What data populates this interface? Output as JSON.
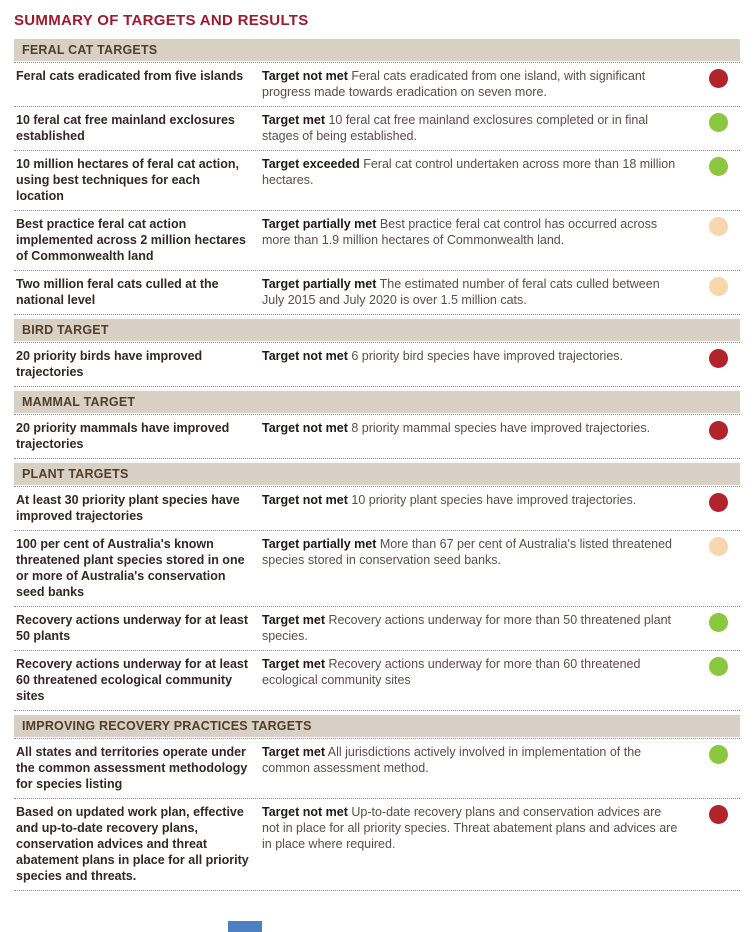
{
  "title": "SUMMARY OF TARGETS AND RESULTS",
  "colors": {
    "met": "#8dc63f",
    "exceeded": "#8dc63f",
    "partially_met": "#f6d7ae",
    "not_met": "#b2232b"
  },
  "sections": [
    {
      "header": "FERAL CAT TARGETS",
      "rows": [
        {
          "target": "Feral cats eradicated from five islands",
          "status_label": "Target not met",
          "result": "Feral cats eradicated from one island, with significant progress made towards eradication on seven more.",
          "status": "not_met"
        },
        {
          "target": "10 feral cat free mainland exclosures established",
          "status_label": "Target met",
          "result": "10 feral cat free mainland exclosures completed or in final stages of being established.",
          "status": "met"
        },
        {
          "target": "10 million hectares of feral cat action, using best techniques for each location",
          "status_label": "Target exceeded",
          "result": "Feral cat control undertaken across more than 18 million hectares.",
          "status": "exceeded"
        },
        {
          "target": "Best practice feral cat action implemented across 2 million hectares of Commonwealth land",
          "status_label": "Target partially met",
          "result": "Best practice feral cat control has occurred across more than 1.9 million hectares of Commonwealth land.",
          "status": "partially_met"
        },
        {
          "target": "Two million feral cats culled at the national level",
          "status_label": "Target partially met",
          "result": "The estimated number of feral cats culled between July 2015 and July 2020 is over 1.5 million cats.",
          "status": "partially_met"
        }
      ]
    },
    {
      "header": "BIRD TARGET",
      "rows": [
        {
          "target": "20 priority birds have improved trajectories",
          "status_label": "Target not met",
          "result": "6 priority bird species have improved trajectories.",
          "status": "not_met"
        }
      ]
    },
    {
      "header": "MAMMAL TARGET",
      "rows": [
        {
          "target": "20 priority mammals have improved trajectories",
          "status_label": "Target not met",
          "result": "8 priority mammal species have improved trajectories.",
          "status": "not_met"
        }
      ]
    },
    {
      "header": "PLANT TARGETS",
      "rows": [
        {
          "target": "At least 30 priority plant species have improved trajectories",
          "status_label": "Target not met",
          "result": "10 priority plant species have improved trajectories.",
          "status": "not_met"
        },
        {
          "target": "100 per cent of Australia's known threatened plant species stored in one or more of Australia's conservation seed banks",
          "status_label": "Target partially met",
          "result": "More than 67 per cent of Australia's listed threatened species stored in conservation seed banks.",
          "status": "partially_met"
        },
        {
          "target": "Recovery actions underway for at least 50 plants",
          "status_label": "Target met",
          "result": "Recovery actions underway for more than 50 threatened plant species.",
          "status": "met"
        },
        {
          "target": "Recovery actions underway for at least 60 threatened ecological community sites",
          "status_label": "Target met",
          "result": "Recovery actions underway for more than 60 threatened ecological community sites",
          "status": "met"
        }
      ]
    },
    {
      "header": "IMPROVING RECOVERY PRACTICES TARGETS",
      "rows": [
        {
          "target": "All states and territories operate under the common assessment methodology for species listing",
          "status_label": "Target met",
          "result": "All jurisdictions actively involved in implementation of the common assessment method.",
          "status": "met"
        },
        {
          "target": "Based on updated work plan, effective and up-to-date recovery plans, conservation advices and threat abatement plans in place for all priority species and threats.",
          "status_label": "Target not met",
          "result": "Up-to-date recovery plans and conservation advices are not in place for all priority species. Threat abatement plans and advices are in place where required.",
          "status": "not_met"
        }
      ]
    }
  ]
}
